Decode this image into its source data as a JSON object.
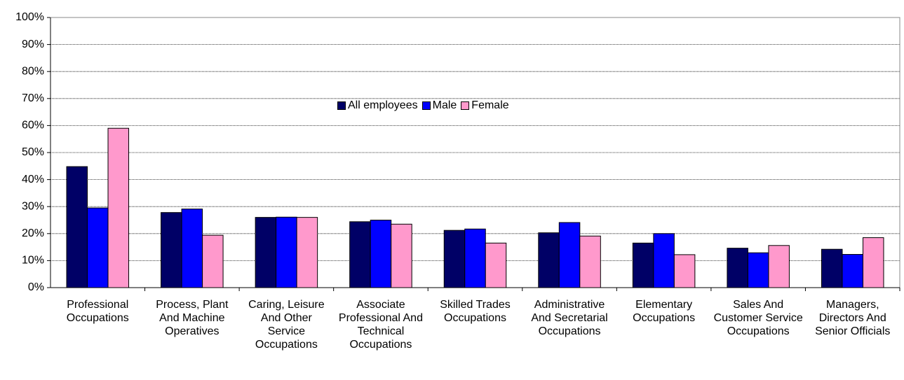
{
  "chart_data": {
    "type": "bar",
    "categories": [
      "Professional Occupations",
      "Process, Plant And Machine Operatives",
      "Caring, Leisure And Other Service Occupations",
      "Associate Professional And Technical Occupations",
      "Skilled Trades Occupations",
      "Administrative And Secretarial Occupations",
      "Elementary Occupations",
      "Sales And Customer Service Occupations",
      "Managers, Directors And Senior Officials"
    ],
    "series": [
      {
        "name": "All employees",
        "color": "#000066",
        "values": [
          44.8,
          27.8,
          26,
          24.4,
          21.2,
          20.3,
          16.5,
          14.6,
          14.2
        ]
      },
      {
        "name": "Male",
        "color": "#0000ff",
        "values": [
          29.5,
          29.1,
          26.1,
          25,
          21.7,
          24.1,
          20,
          12.9,
          12.3
        ]
      },
      {
        "name": "Female",
        "color": "#ff99cc",
        "values": [
          59,
          19.4,
          26,
          23.5,
          16.5,
          19.1,
          12.2,
          15.6,
          18.5
        ]
      }
    ],
    "ylim": [
      0,
      100
    ],
    "yticks": [
      {
        "value": 0,
        "label": "0%"
      },
      {
        "value": 10,
        "label": "10%"
      },
      {
        "value": 20,
        "label": "20%"
      },
      {
        "value": 30,
        "label": "30%"
      },
      {
        "value": 40,
        "label": "40%"
      },
      {
        "value": 50,
        "label": "50%"
      },
      {
        "value": 60,
        "label": "60%"
      },
      {
        "value": 70,
        "label": "70%"
      },
      {
        "value": 80,
        "label": "80%"
      },
      {
        "value": 90,
        "label": "90%"
      },
      {
        "value": 100,
        "label": "100%"
      }
    ],
    "grid": true
  }
}
